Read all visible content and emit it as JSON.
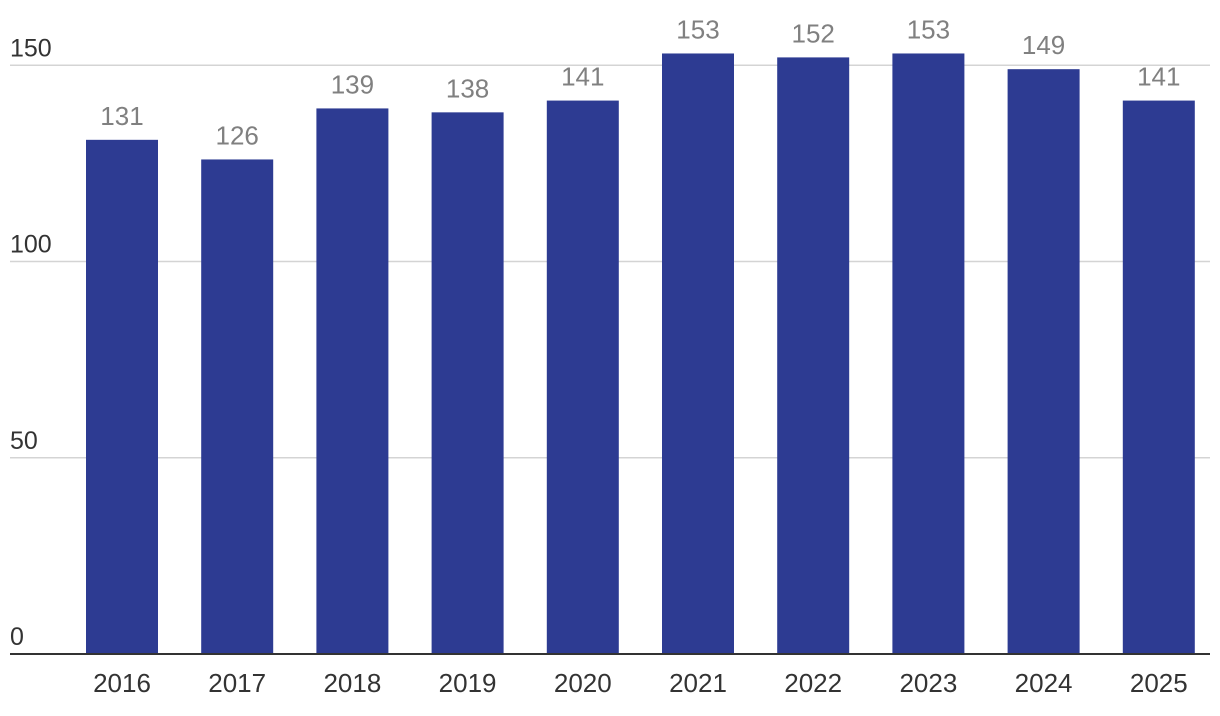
{
  "chart_data": {
    "type": "bar",
    "title": "",
    "xlabel": "",
    "ylabel": "",
    "categories": [
      "2016",
      "2017",
      "2018",
      "2019",
      "2020",
      "2021",
      "2022",
      "2023",
      "2024",
      "2025"
    ],
    "values": [
      131,
      126,
      139,
      138,
      141,
      153,
      152,
      153,
      149,
      141
    ],
    "value_labels": [
      "131",
      "126",
      "139",
      "138",
      "141",
      "153",
      "152",
      "153",
      "149",
      "141"
    ],
    "ylim": [
      0,
      150
    ],
    "yticks": [
      0,
      50,
      100,
      150
    ],
    "ytick_labels": [
      "0",
      "50",
      "100",
      "150"
    ],
    "grid": true,
    "legend": "none",
    "colors": {
      "bar": "#2d3b92",
      "gridline": "#d4d4d4",
      "baseline": "#333333",
      "data_label": "#808080",
      "tick_label": "#333333"
    }
  }
}
